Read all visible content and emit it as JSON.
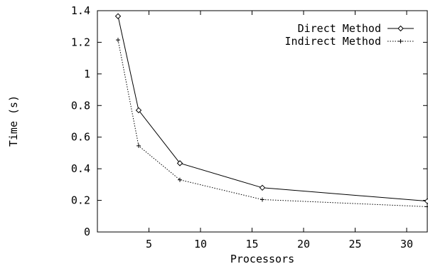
{
  "chart_data": {
    "type": "line",
    "title": "",
    "xlabel": "Processors",
    "ylabel": "Time (s)",
    "xlim": [
      0,
      32
    ],
    "ylim": [
      0,
      1.4
    ],
    "xticks": [
      5,
      10,
      15,
      20,
      25,
      30
    ],
    "yticks": [
      0,
      0.2,
      0.4,
      0.6,
      0.8,
      1,
      1.2,
      1.4
    ],
    "xtick_labels": [
      "5",
      "10",
      "15",
      "20",
      "25",
      "30"
    ],
    "ytick_labels": [
      "0",
      "0.2",
      "0.4",
      "0.6",
      "0.8",
      "1",
      "1.2",
      "1.4"
    ],
    "grid": false,
    "legend_position": "top-right",
    "x": [
      2,
      4,
      8,
      16,
      32
    ],
    "series": [
      {
        "name": "Direct Method",
        "values": [
          1.365,
          0.77,
          0.435,
          0.28,
          0.195
        ],
        "line_style": "solid",
        "marker": "diamond",
        "color": "#000000"
      },
      {
        "name": "Indirect Method",
        "values": [
          1.215,
          0.545,
          0.33,
          0.205,
          0.16
        ],
        "line_style": "dotted",
        "marker": "plus",
        "color": "#000000"
      }
    ]
  }
}
